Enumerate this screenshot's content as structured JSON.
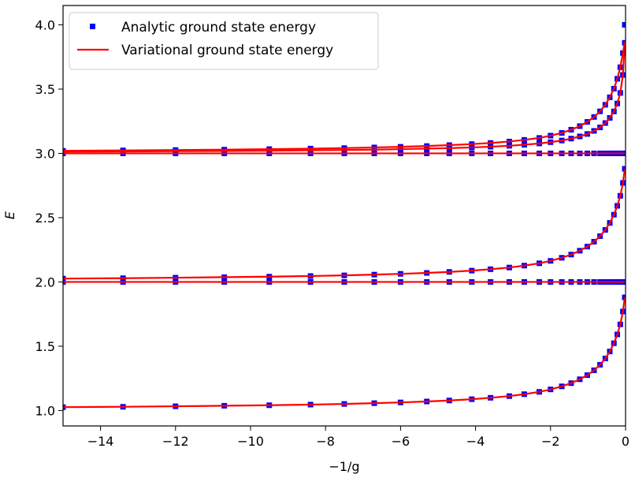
{
  "chart_data": {
    "type": "line",
    "xlabel": "−1/g",
    "ylabel": "E",
    "xlim": [
      -15,
      0
    ],
    "ylim": [
      0.88,
      4.15
    ],
    "x_ticks": [
      -14,
      -12,
      -10,
      -8,
      -6,
      -4,
      -2,
      0
    ],
    "x_tick_labels": [
      "−14",
      "−12",
      "−10",
      "−8",
      "−6",
      "−4",
      "−2",
      "0"
    ],
    "y_ticks": [
      1.0,
      1.5,
      2.0,
      2.5,
      3.0,
      3.5,
      4.0
    ],
    "y_tick_labels": [
      "1.0",
      "1.5",
      "2.0",
      "2.5",
      "3.0",
      "3.5",
      "4.0"
    ],
    "grid": false,
    "legend_position": "top-left",
    "x": [
      -15.0,
      -13.4,
      -12.0,
      -10.7,
      -9.5,
      -8.4,
      -7.5,
      -6.7,
      -6.0,
      -5.3,
      -4.7,
      -4.1,
      -3.6,
      -3.1,
      -2.7,
      -2.3,
      -2.0,
      -1.7,
      -1.45,
      -1.22,
      -1.02,
      -0.84,
      -0.68,
      -0.54,
      -0.42,
      -0.31,
      -0.22,
      -0.14,
      -0.07,
      -0.02
    ],
    "series": [
      {
        "name": "Analytic ground state energy",
        "style": "markers",
        "color": "#0000ff",
        "curves": [
          [
            1.026,
            1.029,
            1.033,
            1.037,
            1.041,
            1.046,
            1.051,
            1.057,
            1.063,
            1.07,
            1.078,
            1.088,
            1.099,
            1.112,
            1.127,
            1.145,
            1.164,
            1.188,
            1.213,
            1.243,
            1.275,
            1.313,
            1.356,
            1.405,
            1.459,
            1.523,
            1.592,
            1.67,
            1.77,
            1.88
          ],
          [
            2.0,
            2.0,
            2.0,
            2.0,
            2.0,
            2.0,
            2.0,
            2.0,
            2.0,
            2.0,
            2.0,
            2.0,
            2.0,
            2.0,
            2.0,
            2.0,
            2.0,
            2.0,
            2.0,
            2.0,
            2.0,
            2.0,
            2.0,
            2.0,
            2.0,
            2.0,
            2.0,
            2.0,
            2.0,
            2.0
          ],
          [
            2.026,
            2.029,
            2.033,
            2.037,
            2.041,
            2.046,
            2.051,
            2.057,
            2.063,
            2.07,
            2.078,
            2.088,
            2.099,
            2.112,
            2.127,
            2.145,
            2.164,
            2.188,
            2.213,
            2.243,
            2.275,
            2.313,
            2.356,
            2.405,
            2.459,
            2.523,
            2.592,
            2.67,
            2.77,
            2.88
          ],
          [
            3.0,
            3.0,
            3.0,
            3.0,
            3.0,
            3.0,
            3.0,
            3.0,
            3.0,
            3.0,
            3.0,
            3.0,
            3.0,
            3.0,
            3.0,
            3.0,
            3.0,
            3.0,
            3.0,
            3.0,
            3.0,
            3.0,
            3.0,
            3.0,
            3.0,
            3.0,
            3.0,
            3.0,
            3.0,
            3.0
          ],
          [
            3.013,
            3.015,
            3.017,
            3.019,
            3.021,
            3.024,
            3.026,
            3.029,
            3.033,
            3.037,
            3.041,
            3.046,
            3.052,
            3.059,
            3.067,
            3.077,
            3.087,
            3.1,
            3.115,
            3.132,
            3.151,
            3.175,
            3.202,
            3.236,
            3.276,
            3.326,
            3.388,
            3.47,
            3.61,
            3.86
          ],
          [
            3.02,
            3.023,
            3.026,
            3.029,
            3.033,
            3.037,
            3.041,
            3.046,
            3.051,
            3.057,
            3.064,
            3.072,
            3.081,
            3.092,
            3.105,
            3.12,
            3.138,
            3.159,
            3.184,
            3.212,
            3.245,
            3.283,
            3.327,
            3.378,
            3.436,
            3.503,
            3.58,
            3.67,
            3.78,
            4.0
          ]
        ]
      },
      {
        "name": "Variational ground state energy",
        "style": "line",
        "color": "#ff0000",
        "curves": [
          [
            1.026,
            1.029,
            1.033,
            1.037,
            1.041,
            1.046,
            1.051,
            1.057,
            1.063,
            1.07,
            1.078,
            1.088,
            1.099,
            1.112,
            1.127,
            1.145,
            1.164,
            1.188,
            1.213,
            1.243,
            1.275,
            1.313,
            1.356,
            1.405,
            1.459,
            1.523,
            1.592,
            1.67,
            1.77,
            1.88
          ],
          [
            2.0,
            2.0,
            2.0,
            2.0,
            2.0,
            2.0,
            2.0,
            2.0,
            2.0,
            2.0,
            2.0,
            2.0,
            2.0,
            2.0,
            2.0,
            2.0,
            2.0,
            2.0,
            2.0,
            2.0,
            2.0,
            2.0,
            2.0,
            2.0,
            2.0,
            2.0,
            2.0,
            2.0,
            2.0,
            2.0
          ],
          [
            2.026,
            2.029,
            2.033,
            2.037,
            2.041,
            2.046,
            2.051,
            2.057,
            2.063,
            2.07,
            2.078,
            2.088,
            2.099,
            2.112,
            2.127,
            2.145,
            2.164,
            2.188,
            2.213,
            2.243,
            2.275,
            2.313,
            2.356,
            2.405,
            2.459,
            2.523,
            2.592,
            2.67,
            2.77,
            2.88
          ],
          [
            3.0,
            3.0,
            3.0,
            3.0,
            3.0,
            3.0,
            3.0,
            3.0,
            3.0,
            3.0,
            3.0,
            3.0,
            3.0,
            3.0,
            3.0,
            3.0,
            3.0,
            3.0,
            3.0,
            3.0,
            3.0,
            3.0,
            3.0,
            3.0,
            3.0,
            3.0,
            3.0,
            3.0,
            3.0,
            3.0
          ],
          [
            3.013,
            3.015,
            3.017,
            3.019,
            3.021,
            3.024,
            3.026,
            3.029,
            3.033,
            3.037,
            3.041,
            3.046,
            3.052,
            3.059,
            3.067,
            3.077,
            3.087,
            3.1,
            3.115,
            3.132,
            3.151,
            3.175,
            3.202,
            3.236,
            3.276,
            3.326,
            3.388,
            3.47,
            3.61,
            3.86
          ],
          [
            3.02,
            3.023,
            3.026,
            3.029,
            3.033,
            3.037,
            3.041,
            3.046,
            3.051,
            3.057,
            3.064,
            3.072,
            3.081,
            3.092,
            3.105,
            3.12,
            3.138,
            3.159,
            3.184,
            3.212,
            3.245,
            3.283,
            3.327,
            3.378,
            3.436,
            3.503,
            3.58,
            3.67,
            3.78,
            3.87
          ]
        ]
      }
    ]
  }
}
